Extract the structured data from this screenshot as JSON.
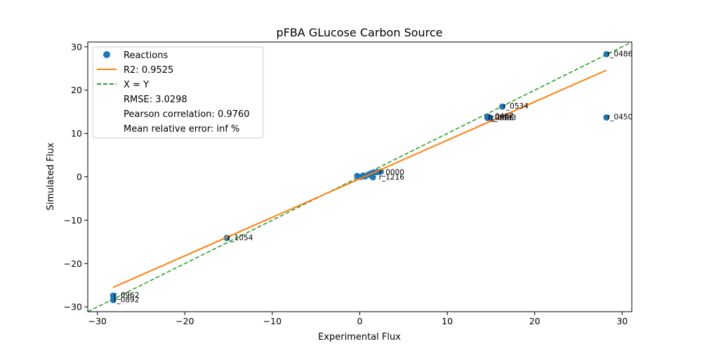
{
  "chart_data": {
    "type": "scatter",
    "title": "pFBA GLucose Carbon Source",
    "xlabel": "Experimental Flux",
    "ylabel": "Simulated Flux",
    "xlim": [
      -31.1,
      31.1
    ],
    "ylim": [
      -31.1,
      31.1
    ],
    "xticks": [
      -30,
      -20,
      -10,
      0,
      10,
      20,
      30
    ],
    "yticks": [
      -30,
      -20,
      -10,
      0,
      10,
      20,
      30
    ],
    "xtick_labels": [
      "−30",
      "−20",
      "−10",
      "0",
      "10",
      "20",
      "30"
    ],
    "ytick_labels": [
      "−30",
      "−20",
      "−10",
      "0",
      "10",
      "20",
      "30"
    ],
    "grid": false,
    "legend_position": "top-left",
    "legend": {
      "reactions": "Reactions",
      "fit": "R2: 0.9525",
      "identity": "X = Y",
      "rmse": "RMSE: 3.0298",
      "pearson": "Pearson correlation: 0.9760",
      "mre": "Mean relative error: inf %"
    },
    "colors": {
      "points": "#1f77b4",
      "fit": "#ff7f0e",
      "identity": "#2ca02c"
    },
    "points": [
      {
        "x": 28.2,
        "y": 28.3,
        "label": "r_0486"
      },
      {
        "x": 28.2,
        "y": 13.7,
        "label": "r_0450"
      },
      {
        "x": 16.3,
        "y": 16.2,
        "label": "r_0534"
      },
      {
        "x": 14.6,
        "y": 13.9,
        "label": "r_0467"
      },
      {
        "x": 14.6,
        "y": 13.6,
        "label": "r_0886"
      },
      {
        "x": 14.9,
        "y": 13.6,
        "label": "r_0883"
      },
      {
        "x": -15.2,
        "y": -14.1,
        "label": "r_1054"
      },
      {
        "x": -28.2,
        "y": -27.4,
        "label": "r_0962"
      },
      {
        "x": -28.2,
        "y": -28.4,
        "label": "r_0892"
      },
      {
        "x": -0.3,
        "y": 0.2,
        "label": ""
      },
      {
        "x": 0.1,
        "y": 0.0,
        "label": ""
      },
      {
        "x": 0.4,
        "y": 0.3,
        "label": ""
      },
      {
        "x": 0.6,
        "y": 0.1,
        "label": ""
      },
      {
        "x": 1.0,
        "y": 0.5,
        "label": ""
      },
      {
        "x": 1.3,
        "y": 0.8,
        "label": ""
      },
      {
        "x": 1.6,
        "y": 1.0,
        "label": ""
      },
      {
        "x": 2.0,
        "y": 1.1,
        "label": ""
      },
      {
        "x": 2.4,
        "y": 1.2,
        "label": ""
      },
      {
        "x": 1.5,
        "y": -0.1,
        "label": ""
      },
      {
        "x": 1.4,
        "y": 0.2,
        "label": ""
      }
    ],
    "cluster_labels": [
      {
        "x": 2.1,
        "y": 1.0,
        "label": "r_0000"
      },
      {
        "x": 2.1,
        "y": -0.2,
        "label": "r_1216"
      }
    ],
    "fit_line": {
      "x": [
        -28.2,
        28.2
      ],
      "y": [
        -25.5,
        24.6
      ]
    },
    "identity_line": {
      "x": [
        -31.1,
        31.1
      ],
      "y": [
        -31.1,
        31.1
      ]
    }
  }
}
